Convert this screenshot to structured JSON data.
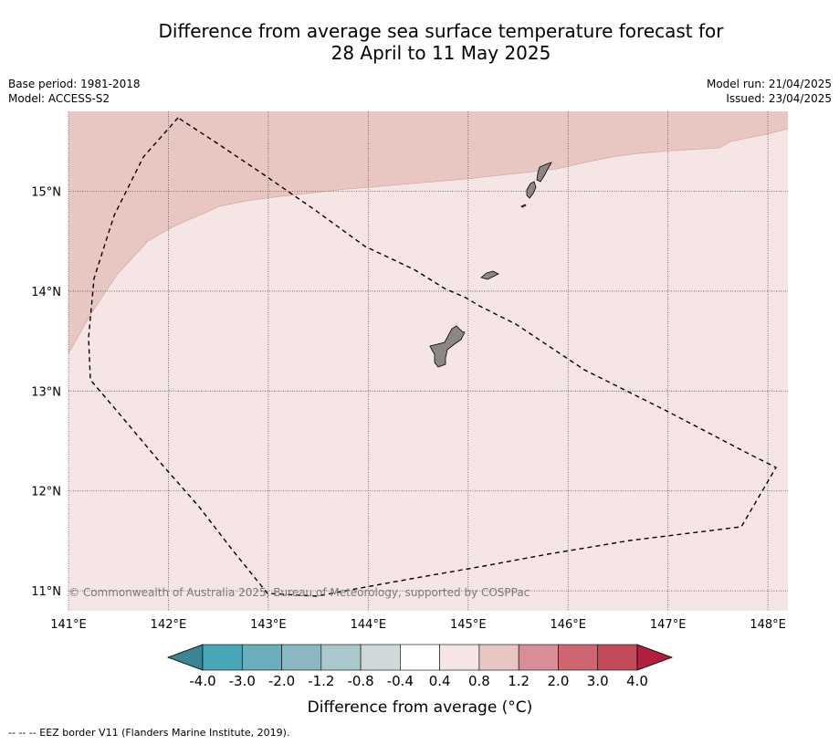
{
  "title": {
    "line1": "Difference from average sea surface temperature forecast for",
    "line2": "28 April to 11 May 2025"
  },
  "meta": {
    "base_period": "Base period: 1981-2018",
    "model": "Model: ACCESS-S2",
    "model_run": "Model run: 21/04/2025",
    "issued": "Issued: 23/04/2025"
  },
  "map": {
    "lon_range": [
      141.0,
      148.2
    ],
    "lat_range": [
      10.8,
      15.8
    ],
    "lon_ticks": [
      141,
      142,
      143,
      144,
      145,
      146,
      147,
      148
    ],
    "lat_ticks": [
      11,
      12,
      13,
      14,
      15
    ],
    "lon_labels": [
      "141°E",
      "142°E",
      "143°E",
      "144°E",
      "145°E",
      "146°E",
      "147°E",
      "148°E"
    ],
    "lat_labels": [
      "11°N",
      "12°N",
      "13°N",
      "14°N",
      "15°N"
    ],
    "copyright": "© Commonwealth of Australia 2025, Bureau of Meteorology, supported by COSPPac",
    "colors": {
      "band_04_08": "#f5e6e5",
      "band_08_12": "#e8c6c1",
      "land": "#8c8784"
    }
  },
  "colorbar": {
    "label": "Difference from average (°C)",
    "tick_labels": [
      "-4.0",
      "-3.0",
      "-2.0",
      "-1.2",
      "-0.8",
      "-0.4",
      "0.4",
      "0.8",
      "1.2",
      "2.0",
      "3.0",
      "4.0"
    ],
    "colors": [
      "#3b8494",
      "#48a5b5",
      "#6aaebd",
      "#8bb7c2",
      "#a9c9cd",
      "#d0d8da",
      "#ffffff",
      "#f5e6e5",
      "#e8c6c1",
      "#d88e96",
      "#cd6670",
      "#c24c5a",
      "#b11f3c"
    ]
  },
  "footer": {
    "eez_note": "-- -- -- EEZ border V11 (Flanders Marine Institute, 2019)."
  }
}
